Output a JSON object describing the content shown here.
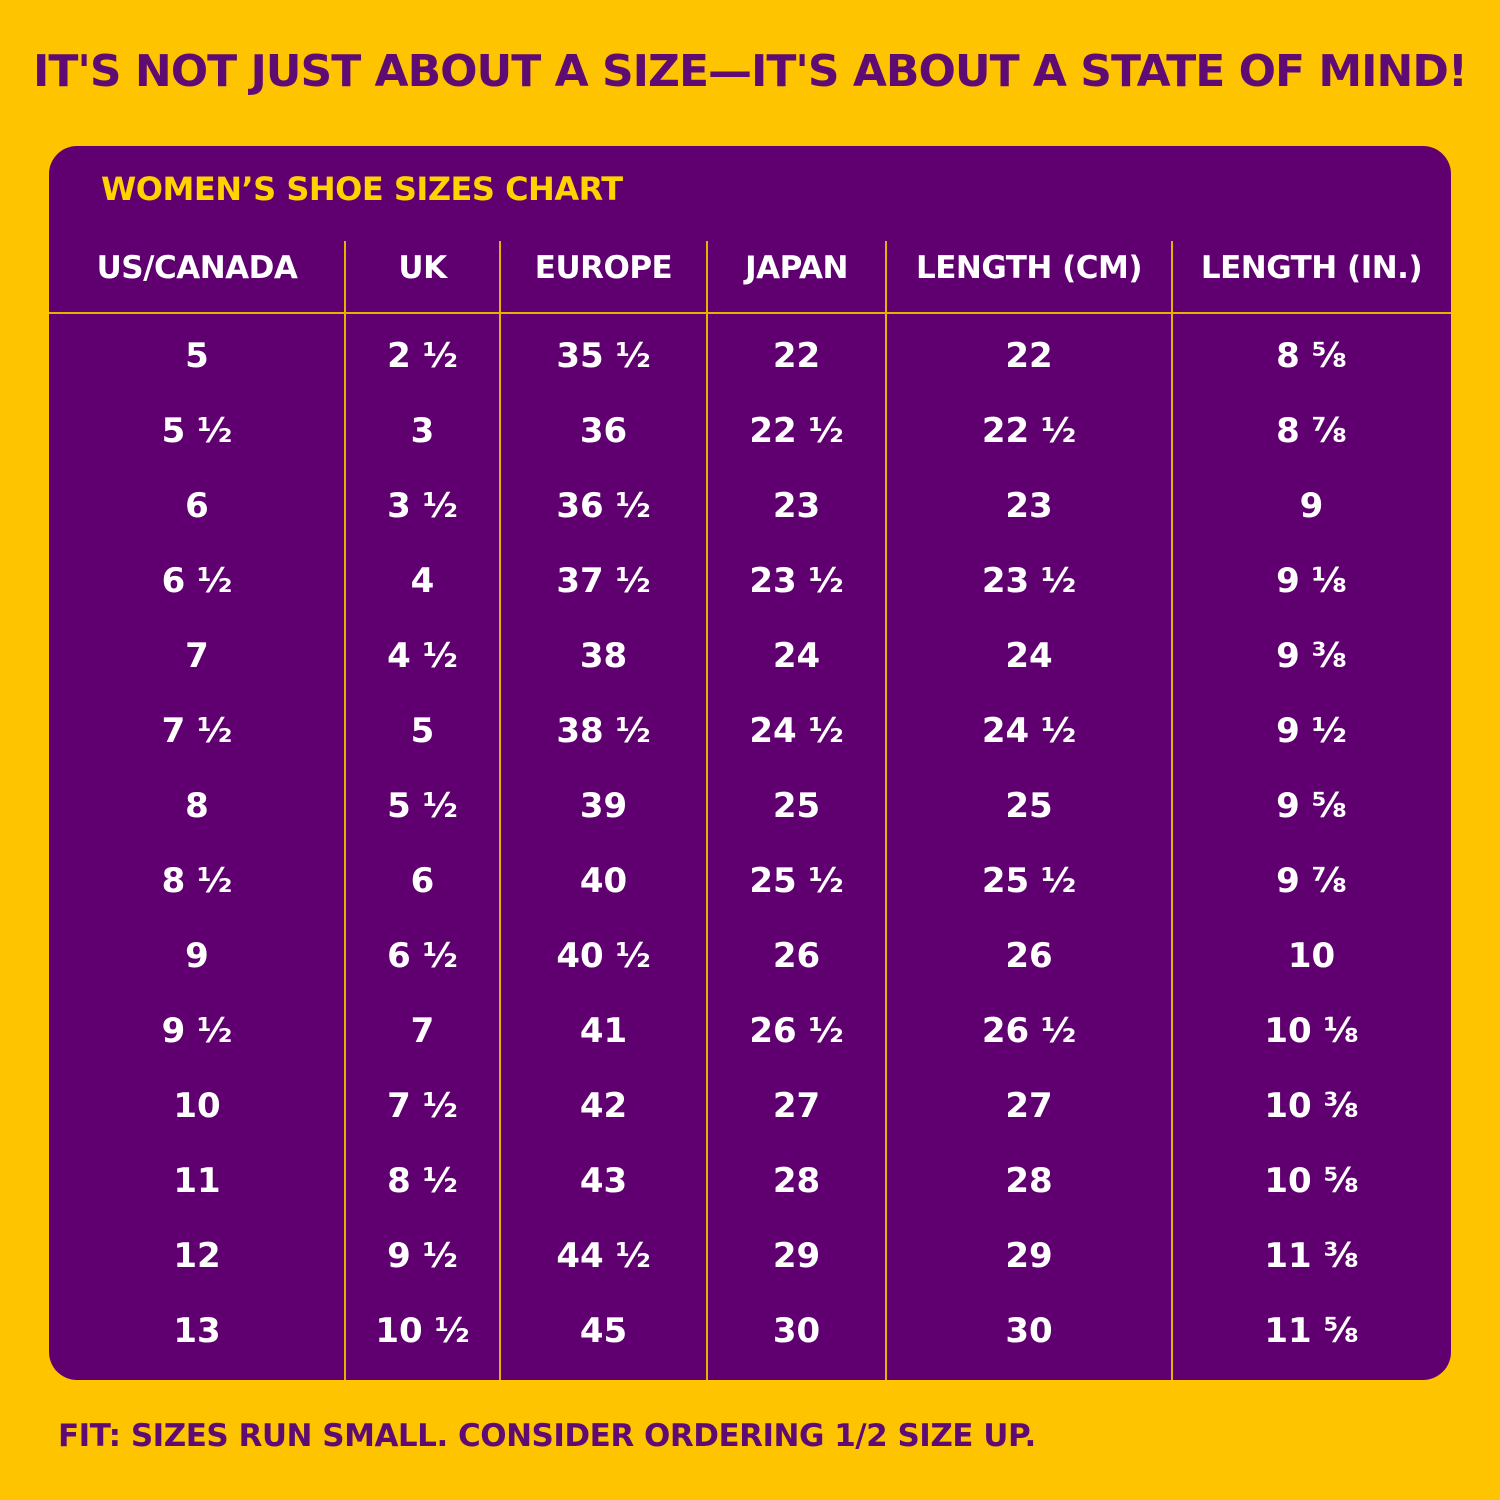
{
  "headline": "IT'S NOT JUST ABOUT A SIZE—IT'S ABOUT A STATE OF MIND!",
  "chart_title": "WOMEN’S SHOE SIZES CHART",
  "columns": [
    "US/CANADA",
    "UK",
    "EUROPE",
    "JAPAN",
    "LENGTH (CM)",
    "LENGTH (IN.)"
  ],
  "rows": [
    [
      "5",
      "2 ½",
      "35 ½",
      "22",
      "22",
      "8 ⅝"
    ],
    [
      "5 ½",
      "3",
      "36",
      "22 ½",
      "22 ½",
      "8 ⅞"
    ],
    [
      "6",
      "3 ½",
      "36 ½",
      "23",
      "23",
      "9"
    ],
    [
      "6 ½",
      "4",
      "37 ½",
      "23 ½",
      "23 ½",
      "9 ⅛"
    ],
    [
      "7",
      "4 ½",
      "38",
      "24",
      "24",
      "9 ⅜"
    ],
    [
      "7 ½",
      "5",
      "38 ½",
      "24 ½",
      "24 ½",
      "9 ½"
    ],
    [
      "8",
      "5 ½",
      "39",
      "25",
      "25",
      "9 ⅝"
    ],
    [
      "8 ½",
      "6",
      "40",
      "25 ½",
      "25 ½",
      "9 ⅞"
    ],
    [
      "9",
      "6 ½",
      "40 ½",
      "26",
      "26",
      "10"
    ],
    [
      "9 ½",
      "7",
      "41",
      "26 ½",
      "26 ½",
      "10 ⅛"
    ],
    [
      "10",
      "7 ½",
      "42",
      "27",
      "27",
      "10 ⅜"
    ],
    [
      "11",
      "8 ½",
      "43",
      "28",
      "28",
      "10 ⅝"
    ],
    [
      "12",
      "9 ½",
      "44 ½",
      "29",
      "29",
      "11 ⅜"
    ],
    [
      "13",
      "10 ½",
      "45",
      "30",
      "30",
      "11 ⅝"
    ]
  ],
  "footer": "FIT: SIZES RUN SMALL. CONSIDER ORDERING 1/2 SIZE UP.",
  "colors": {
    "background": "#FFC400",
    "panel": "#600070",
    "accent": "#FFD200",
    "text_dark": "#5E0C74"
  }
}
